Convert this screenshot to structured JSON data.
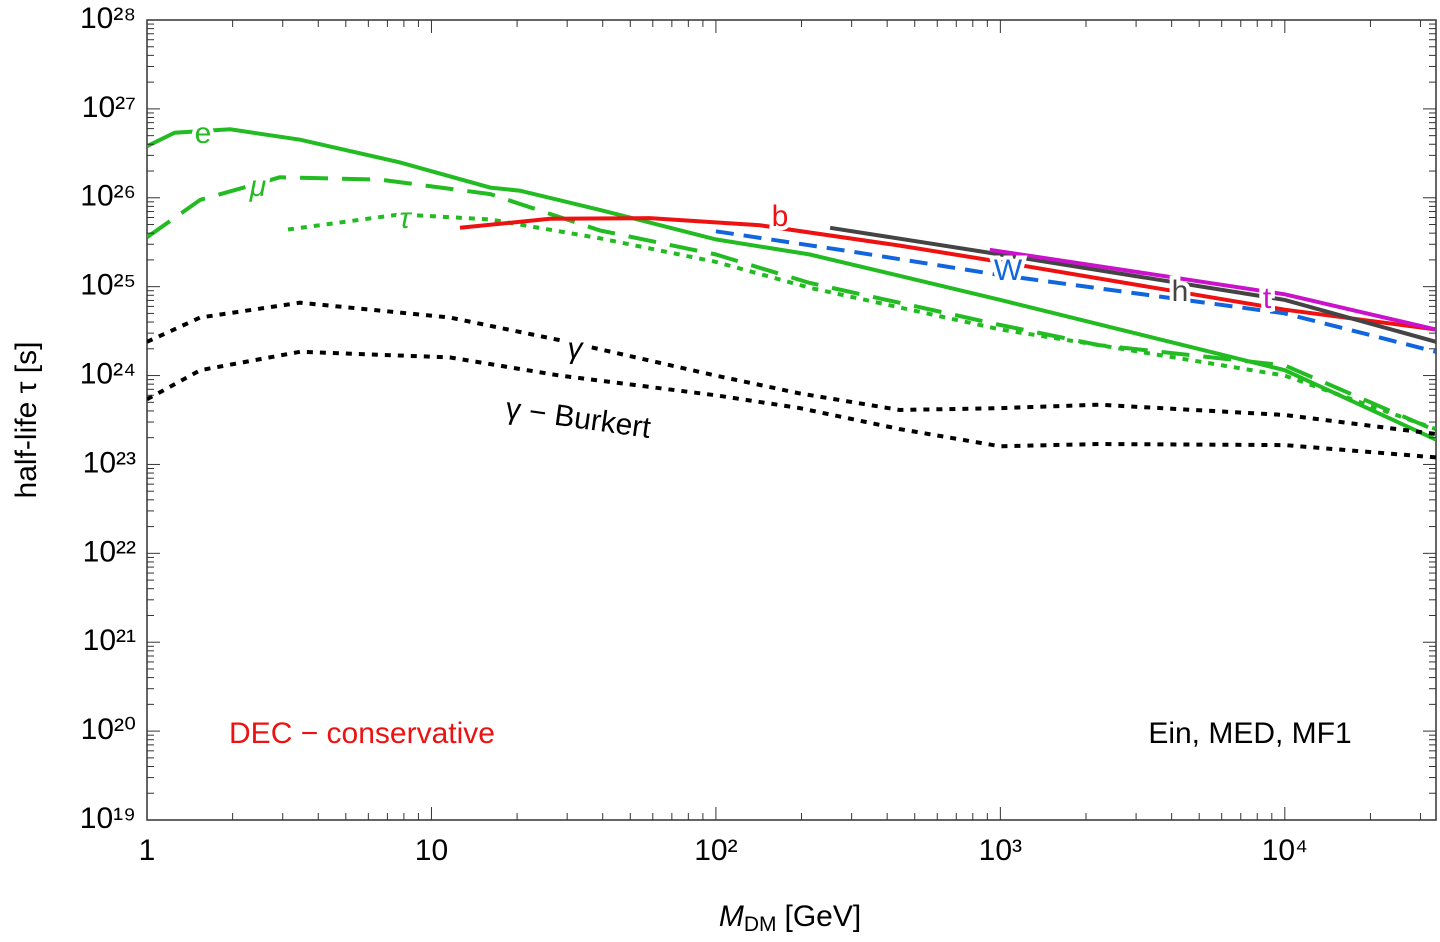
{
  "chart_data": {
    "type": "line",
    "ylabel": "half-life τ [s]",
    "xlabel": {
      "symbol": "M",
      "subscript": "DM",
      "unit": "[GeV]"
    },
    "log_x": true,
    "log_y": true,
    "grid": false,
    "xlim": [
      1,
      34000
    ],
    "ylim": [
      1e+19,
      1e+28
    ],
    "xticks": [
      1,
      10,
      {
        "value": 100,
        "label": "10²"
      },
      {
        "value": 1000,
        "label": "10³"
      },
      {
        "value": 10000,
        "label": "10⁴"
      }
    ],
    "yticks": [
      {
        "value": 1e+19,
        "label": "10¹⁹"
      },
      {
        "value": 1e+20,
        "label": "10²⁰"
      },
      {
        "value": 1e+21,
        "label": "10²¹"
      },
      {
        "value": 1e+22,
        "label": "10²²"
      },
      {
        "value": 1e+23,
        "label": "10²³"
      },
      {
        "value": 1e+24,
        "label": "10²⁴"
      },
      {
        "value": 1e+25,
        "label": "10²⁵"
      },
      {
        "value": 1e+26,
        "label": "10²⁶"
      },
      {
        "value": 1e+27,
        "label": "10²⁷"
      },
      {
        "value": 1e+28,
        "label": "10²⁸"
      }
    ],
    "series": [
      {
        "name": "e",
        "color": "#22bb22",
        "dash": "solid",
        "x": [
          1,
          1.25,
          1.96,
          3.45,
          7.75,
          16.1,
          20.5,
          39.1,
          100,
          214,
          1000,
          10000,
          34000
        ],
        "values": [
          3.8e+26,
          5.4e+26,
          5.9e+26,
          4.5e+26,
          2.5e+26,
          1.3e+26,
          1.2e+26,
          7.3e+25,
          3.4e+25,
          2.3e+25,
          7.1e+24,
          1.15e+24,
          1.9e+23
        ]
      },
      {
        "name": "μ",
        "color": "#22bb22",
        "dash": "long-dash",
        "x": [
          1,
          1.54,
          2.93,
          6.6,
          16.1,
          39.1,
          100,
          214,
          1000,
          2220,
          10000,
          34000
        ],
        "values": [
          3.6e+25,
          9.5e+25,
          1.7e+26,
          1.6e+26,
          1.1e+26,
          4.3e+25,
          2.3e+25,
          1.1e+25,
          3.7e+24,
          2.2e+24,
          1.3e+24,
          2.4e+23
        ]
      },
      {
        "name": "τ",
        "color": "#22bb22",
        "dash": "dot",
        "x": [
          3.13,
          7.75,
          16.1,
          39.1,
          100,
          214,
          1000,
          2220,
          10000,
          34000
        ],
        "values": [
          4.4e+25,
          6.5e+25,
          5.7e+25,
          3.5e+25,
          1.9e+25,
          9.7e+24,
          3.3e+24,
          2.2e+24,
          1e+24,
          2.5e+23
        ]
      },
      {
        "name": "b",
        "color": "#ee1111",
        "dash": "solid",
        "x": [
          12.6,
          26.1,
          58.6,
          143,
          443,
          1000,
          10000,
          34000
        ],
        "values": [
          4.6e+25,
          5.8e+25,
          5.9e+25,
          4.9e+25,
          2.9e+25,
          1.9e+25,
          5.5e+24,
          3.3e+24
        ]
      },
      {
        "name": "W",
        "color": "#1166dd",
        "dash": "dash",
        "x": [
          100,
          296,
          1000,
          10000,
          34000
        ],
        "values": [
          4.2e+25,
          2.5e+25,
          1.35e+25,
          5e+24,
          1.85e+24
        ]
      },
      {
        "name": "h",
        "color": "#444444",
        "dash": "solid",
        "x": [
          252,
          1000,
          10000,
          34000
        ],
        "values": [
          4.6e+25,
          2.3e+25,
          7.1e+24,
          2.4e+24
        ]
      },
      {
        "name": "t",
        "color": "#cc11cc",
        "dash": "solid",
        "x": [
          918,
          10000,
          34000
        ],
        "values": [
          2.6e+25,
          8.2e+24,
          3.3e+24
        ]
      },
      {
        "name": "γ",
        "color": "#000000",
        "dash": "dot",
        "x": [
          1,
          1.54,
          3.45,
          11.6,
          28.3,
          100,
          197,
          443,
          1000,
          2220,
          10000,
          34000
        ],
        "values": [
          2.4e+24,
          4.5e+24,
          6.6e+24,
          4.5e+24,
          2.5e+24,
          1e+24,
          6.3e+23,
          4.1e+23,
          4.3e+23,
          4.7e+23,
          3.6e+23,
          2.2e+23
        ]
      },
      {
        "name": "γ − Burkert",
        "color": "#000000",
        "dash": "dot",
        "x": [
          1,
          1.54,
          3.45,
          11.6,
          28.3,
          100,
          197,
          443,
          1000,
          2220,
          10000,
          34000
        ],
        "values": [
          5.4e+23,
          1.15e+24,
          1.85e+24,
          1.6e+24,
          1e+24,
          6e+23,
          4.3e+23,
          2.5e+23,
          1.6e+23,
          1.7e+23,
          1.65e+23,
          1.2e+23
        ]
      }
    ],
    "annotations": [
      {
        "text": "DEC − conservative",
        "color": "#ee1111"
      },
      {
        "text": "Ein, MED, MF1",
        "color": "#000000"
      }
    ]
  }
}
